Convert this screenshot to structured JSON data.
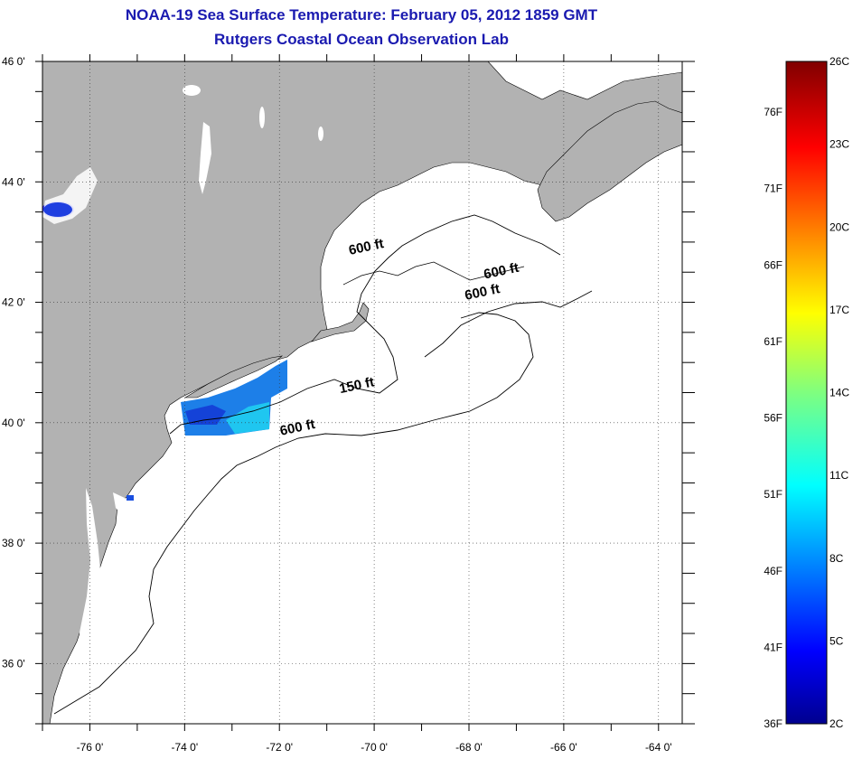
{
  "title": {
    "line1": "NOAA-19 Sea Surface Temperature:  February 05, 2012 1859 GMT",
    "line2": "Rutgers Coastal Ocean Observation Lab"
  },
  "map": {
    "lon_range": [
      -77.0,
      -63.5
    ],
    "lat_range": [
      35.0,
      46.0
    ],
    "lon_ticks": [
      {
        "value": -76,
        "label": "-76 0'"
      },
      {
        "value": -74,
        "label": "-74 0'"
      },
      {
        "value": -72,
        "label": "-72 0'"
      },
      {
        "value": -70,
        "label": "-70 0'"
      },
      {
        "value": -68,
        "label": "-68 0'"
      },
      {
        "value": -66,
        "label": "-66 0'"
      },
      {
        "value": -64,
        "label": "-64 0'"
      }
    ],
    "lat_ticks": [
      {
        "value": 46,
        "label": "46 0'"
      },
      {
        "value": 44,
        "label": "44 0'"
      },
      {
        "value": 42,
        "label": "42 0'"
      },
      {
        "value": 40,
        "label": "40 0'"
      },
      {
        "value": 38,
        "label": "38 0'"
      },
      {
        "value": 36,
        "label": "36 0'"
      }
    ],
    "grid": "dotted",
    "land_color": "#b2b2b2",
    "water_color": "#ffffff"
  },
  "contour_labels": [
    {
      "text": "600 ft",
      "lon": -70.15,
      "lat": 42.85
    },
    {
      "text": "600 ft",
      "lon": -67.3,
      "lat": 42.45
    },
    {
      "text": "600 ft",
      "lon": -67.7,
      "lat": 42.1
    },
    {
      "text": "150 ft",
      "lon": -70.35,
      "lat": 40.55
    },
    {
      "text": "600 ft",
      "lon": -71.6,
      "lat": 39.85
    }
  ],
  "colorbar": {
    "units_left": [
      "76F",
      "71F",
      "66F",
      "61F",
      "56F",
      "51F",
      "46F",
      "41F",
      "36F"
    ],
    "units_right": [
      "26C",
      "23C",
      "20C",
      "17C",
      "14C",
      "11C",
      "8C",
      "5C",
      "2C"
    ],
    "colormap": "jet",
    "min_c": 2,
    "max_c": 26
  }
}
